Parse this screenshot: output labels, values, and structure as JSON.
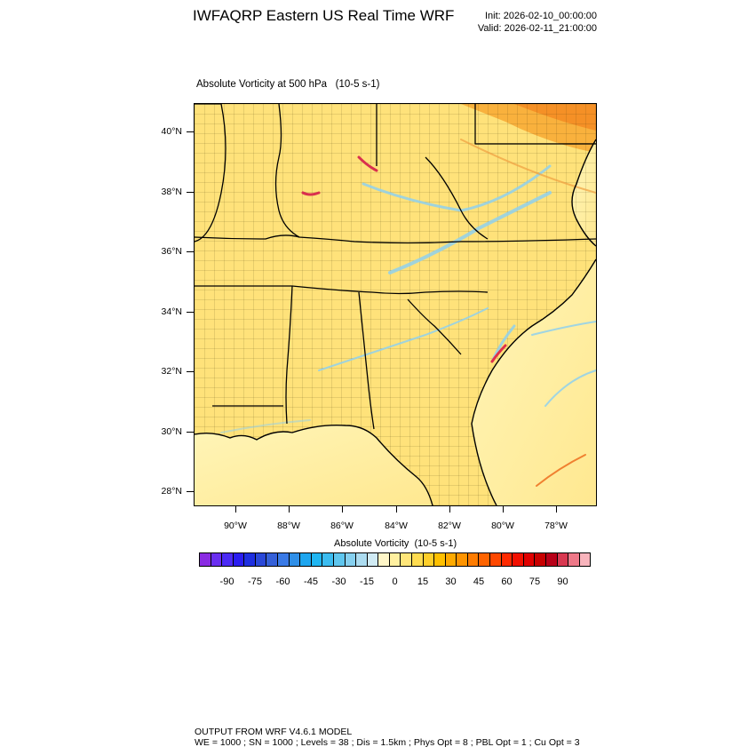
{
  "header": {
    "title": "IWFAQRP Eastern US Real Time WRF",
    "init": "Init: 2026-02-10_00:00:00",
    "valid": "Valid: 2026-02-11_21:00:00"
  },
  "map": {
    "subtitle": "Absolute Vorticity at 500 hPa   (10-5 s-1)",
    "lat_labels": [
      "40°N",
      "38°N",
      "36°N",
      "34°N",
      "32°N",
      "30°N",
      "28°N"
    ],
    "lon_labels": [
      "90°W",
      "88°W",
      "86°W",
      "84°W",
      "82°W",
      "80°W",
      "78°W"
    ],
    "colors": {
      "land_fill": "#ffe27a",
      "ocean_fill": "#fff2a8",
      "high_vort": "#f7941d",
      "low_vort": "#a6d8f0",
      "state_line": "#000000"
    }
  },
  "colorbar": {
    "title": "Absolute Vorticity  (10-5 s-1)",
    "labels": [
      "-90",
      "-75",
      "-60",
      "-45",
      "-30",
      "-15",
      "0",
      "15",
      "30",
      "45",
      "60",
      "75",
      "90"
    ],
    "colors": [
      "#8a2be2",
      "#6a2ef0",
      "#4b2af5",
      "#2a1df0",
      "#1e2fe0",
      "#2a48d8",
      "#3560d8",
      "#3a7ae6",
      "#2f8fe8",
      "#1ea6ef",
      "#20b6f2",
      "#3bbcf0",
      "#5fc6ee",
      "#86d0ef",
      "#acdcf0",
      "#d1ebf4",
      "#fff6c8",
      "#fff0a0",
      "#ffe67a",
      "#ffdc50",
      "#ffcf2a",
      "#ffc000",
      "#ffaa00",
      "#ff9400",
      "#ff7c00",
      "#ff6400",
      "#ff4800",
      "#ff2a00",
      "#f21000",
      "#e00000",
      "#c80000",
      "#b80018",
      "#d83850",
      "#ee7888",
      "#f8b4bc"
    ]
  },
  "footer": {
    "line1": "OUTPUT FROM WRF V4.6.1 MODEL",
    "line2": "WE = 1000 ; SN = 1000 ; Levels = 38 ; Dis = 1.5km ; Phys Opt = 8 ; PBL Opt = 1 ; Cu Opt = 3"
  }
}
